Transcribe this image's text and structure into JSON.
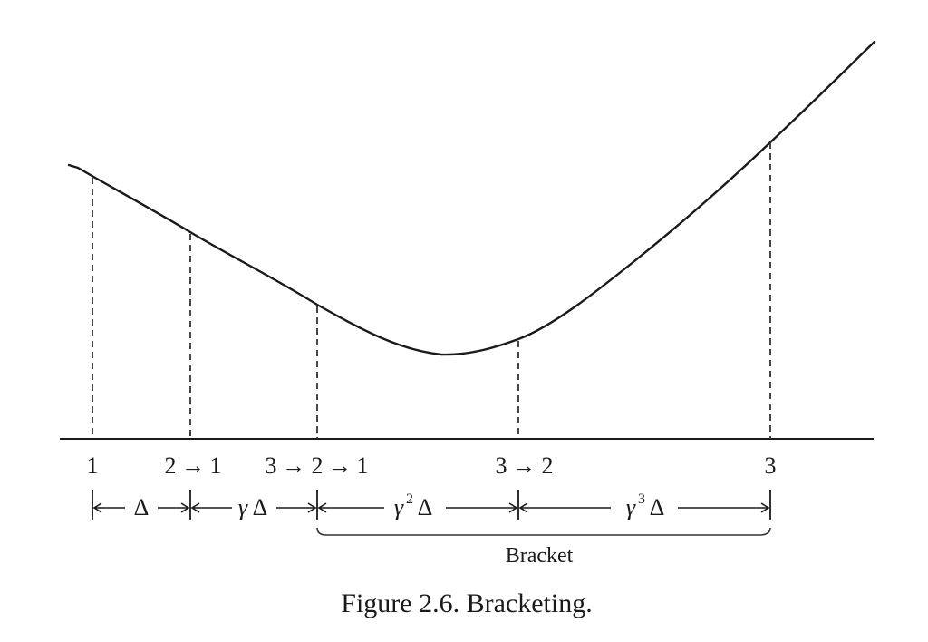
{
  "point_labels": {
    "p1": "1",
    "p2": "2",
    "p2_arrow": "→",
    "p2_to": "1",
    "p3": "3",
    "p3_arrow1": "→",
    "p3_mid": "2",
    "p3_arrow2": "→",
    "p3_to": "1",
    "p4": "3",
    "p4_arrow": "→",
    "p4_to": "2",
    "p5": "3"
  },
  "intervals": {
    "i1": "Δ",
    "i2_gamma": "γ",
    "i2_delta": "Δ",
    "i3_gamma": "γ",
    "i3_exp": "2",
    "i3_delta": "Δ",
    "i4_gamma": "γ",
    "i4_exp": "3",
    "i4_delta": "Δ"
  },
  "bracket_label": "Bracket",
  "caption": "Figure 2.6. Bracketing."
}
